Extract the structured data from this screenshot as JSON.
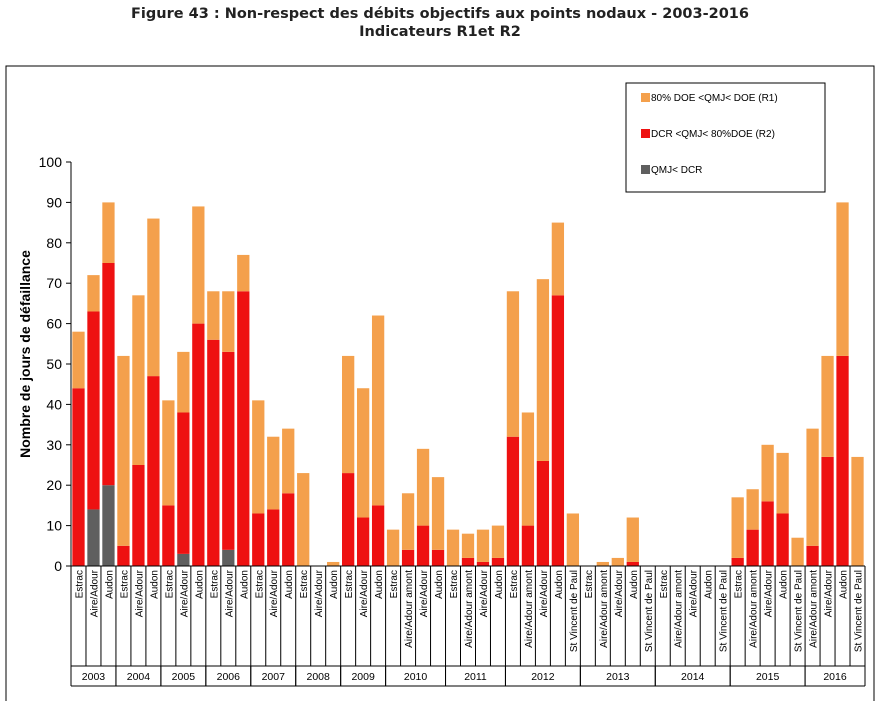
{
  "figure_title": "Figure 43 : Non-respect des débits objectifs aux points nodaux - 2003-2016",
  "figure_subtitle": "Indicateurs R1et R2",
  "chart_data": {
    "type": "bar",
    "stacked": true,
    "ylabel": "Nombre de jours de défaillance",
    "ylim": [
      0,
      100
    ],
    "yticks": [
      0,
      10,
      20,
      30,
      40,
      50,
      60,
      70,
      80,
      90,
      100
    ],
    "grid": false,
    "legend_position": "top-right",
    "colors": {
      "QMJ< DCR": "#5f5f5f",
      "DCR <QMJ< 80%DOE (R2)": "#ee1111",
      "80% DOE <QMJ< DOE (R1)": "#f4a04c"
    },
    "legend": [
      "80% DOE <QMJ< DOE (R1)",
      "DCR <QMJ< 80%DOE (R2)",
      "QMJ< DCR"
    ],
    "groups": [
      {
        "year": "2003",
        "categories": [
          "Estrac",
          "Aire/Adour",
          "Audon"
        ]
      },
      {
        "year": "2004",
        "categories": [
          "Estrac",
          "Aire/Adour",
          "Audon"
        ]
      },
      {
        "year": "2005",
        "categories": [
          "Estrac",
          "Aire/Adour",
          "Audon"
        ]
      },
      {
        "year": "2006",
        "categories": [
          "Estrac",
          "Aire/Adour",
          "Audon"
        ]
      },
      {
        "year": "2007",
        "categories": [
          "Estrac",
          "Aire/Adour",
          "Audon"
        ]
      },
      {
        "year": "2008",
        "categories": [
          "Estrac",
          "Aire/Adour",
          "Audon"
        ]
      },
      {
        "year": "2009",
        "categories": [
          "Estrac",
          "Aire/Adour",
          "Audon"
        ]
      },
      {
        "year": "2010",
        "categories": [
          "Estrac",
          "Aire/Adour amont",
          "Aire/Adour",
          "Audon"
        ]
      },
      {
        "year": "2011",
        "categories": [
          "Estrac",
          "Aire/Adour amont",
          "Aire/Adour",
          "Audon"
        ]
      },
      {
        "year": "2012",
        "categories": [
          "Estrac",
          "Aire/Adour amont",
          "Aire/Adour",
          "Audon",
          "St Vincent de Paul"
        ]
      },
      {
        "year": "2013",
        "categories": [
          "Estrac",
          "Aire/Adour amont",
          "Aire/Adour",
          "Audon",
          "St Vincent de Paul"
        ]
      },
      {
        "year": "2014",
        "categories": [
          "Estrac",
          "Aire/Adour amont",
          "Aire/Adour",
          "Audon",
          "St Vincent de Paul"
        ]
      },
      {
        "year": "2015",
        "categories": [
          "Estrac",
          "Aire/Adour amont",
          "Aire/Adour",
          "Audon",
          "St Vincent de Paul"
        ]
      },
      {
        "year": "2016",
        "categories": [
          "Aire/Adour amont",
          "Aire/Adour",
          "Audon",
          "St Vincent de Paul"
        ]
      }
    ],
    "series": [
      {
        "name": "QMJ< DCR",
        "values": [
          0,
          14,
          20,
          0,
          0,
          0,
          0,
          3,
          0,
          0,
          4,
          0,
          0,
          0,
          0,
          0,
          0,
          0,
          0,
          0,
          0,
          0,
          0,
          0,
          0,
          0,
          0,
          0,
          0,
          0,
          0,
          0,
          0,
          0,
          0,
          0,
          0,
          0,
          0,
          0,
          0,
          0,
          0,
          0,
          0,
          0,
          0,
          0,
          0,
          0,
          0,
          0,
          0
        ]
      },
      {
        "name": "DCR <QMJ< 80%DOE (R2)",
        "values": [
          44,
          49,
          55,
          5,
          25,
          47,
          15,
          35,
          60,
          56,
          49,
          68,
          13,
          14,
          18,
          0,
          0,
          0,
          23,
          12,
          15,
          0,
          4,
          10,
          4,
          0,
          2,
          1,
          2,
          32,
          10,
          26,
          67,
          0,
          0,
          0,
          0,
          1,
          0,
          0,
          0,
          0,
          0,
          0,
          2,
          9,
          16,
          13,
          0,
          5,
          27,
          52,
          0
        ]
      },
      {
        "name": "80% DOE <QMJ< DOE (R1)",
        "values": [
          14,
          9,
          15,
          47,
          42,
          39,
          26,
          15,
          29,
          12,
          15,
          9,
          28,
          18,
          16,
          23,
          0,
          1,
          29,
          32,
          47,
          9,
          14,
          19,
          18,
          9,
          6,
          8,
          8,
          36,
          28,
          45,
          18,
          13,
          0,
          1,
          2,
          11,
          0,
          0,
          0,
          0,
          0,
          0,
          15,
          10,
          14,
          15,
          7,
          29,
          25,
          38,
          27
        ]
      }
    ]
  }
}
